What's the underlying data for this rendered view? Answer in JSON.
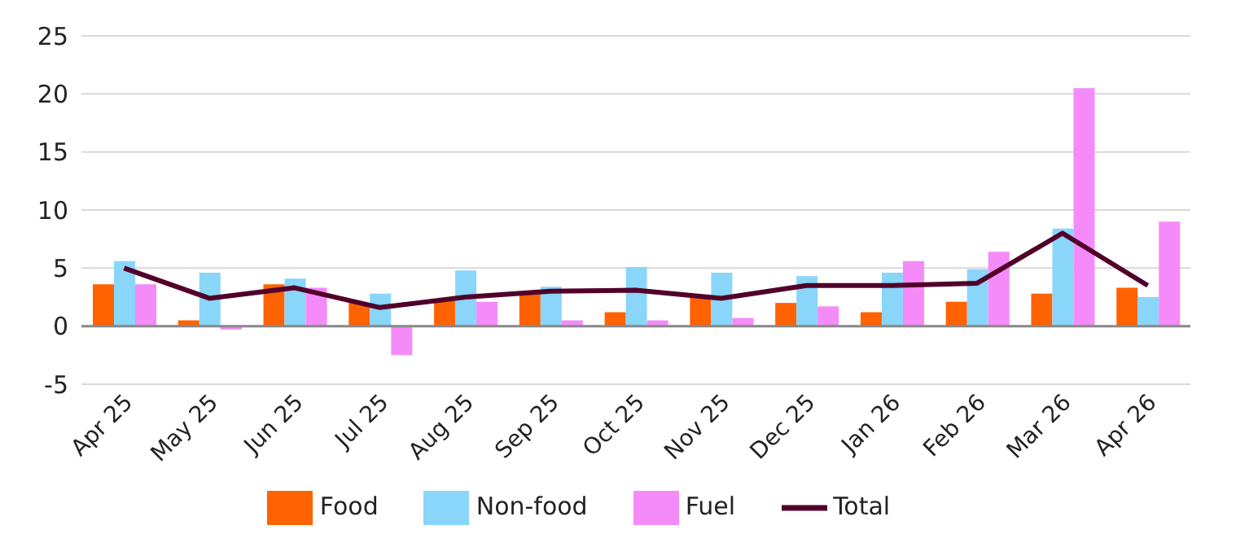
{
  "chart_data": {
    "type": "bar",
    "categories": [
      "Apr 25",
      "May 25",
      "Jun 25",
      "Jul 25",
      "Aug 25",
      "Sep 25",
      "Oct 25",
      "Nov 25",
      "Dec 25",
      "Jan 26",
      "Feb 26",
      "Mar 26",
      "Apr 26"
    ],
    "series": [
      {
        "name": "Food",
        "color": "#ff6200",
        "values": [
          3.6,
          0.5,
          3.6,
          2.0,
          2.2,
          2.9,
          1.2,
          2.5,
          2.0,
          1.2,
          2.1,
          2.8,
          3.3
        ]
      },
      {
        "name": "Non-food",
        "color": "#89d6fa",
        "values": [
          5.6,
          4.6,
          4.1,
          2.8,
          4.8,
          3.4,
          5.1,
          4.6,
          4.3,
          4.6,
          4.9,
          8.4,
          2.5
        ]
      },
      {
        "name": "Fuel",
        "color": "#f58bf8",
        "values": [
          3.6,
          -0.3,
          3.3,
          -2.5,
          2.1,
          0.5,
          0.5,
          0.7,
          1.7,
          5.6,
          6.4,
          20.5,
          9.0
        ]
      },
      {
        "name": "Total",
        "type": "line",
        "color": "#52002a",
        "values": [
          5.0,
          2.4,
          3.3,
          1.6,
          2.5,
          3.0,
          3.1,
          2.4,
          3.5,
          3.5,
          3.7,
          8.0,
          3.5
        ]
      }
    ],
    "ylim": [
      -5,
      25
    ],
    "yticks": [
      -5,
      0,
      5,
      10,
      15,
      20,
      25
    ],
    "grid": "y",
    "legend": "bottom",
    "marker": "none"
  }
}
